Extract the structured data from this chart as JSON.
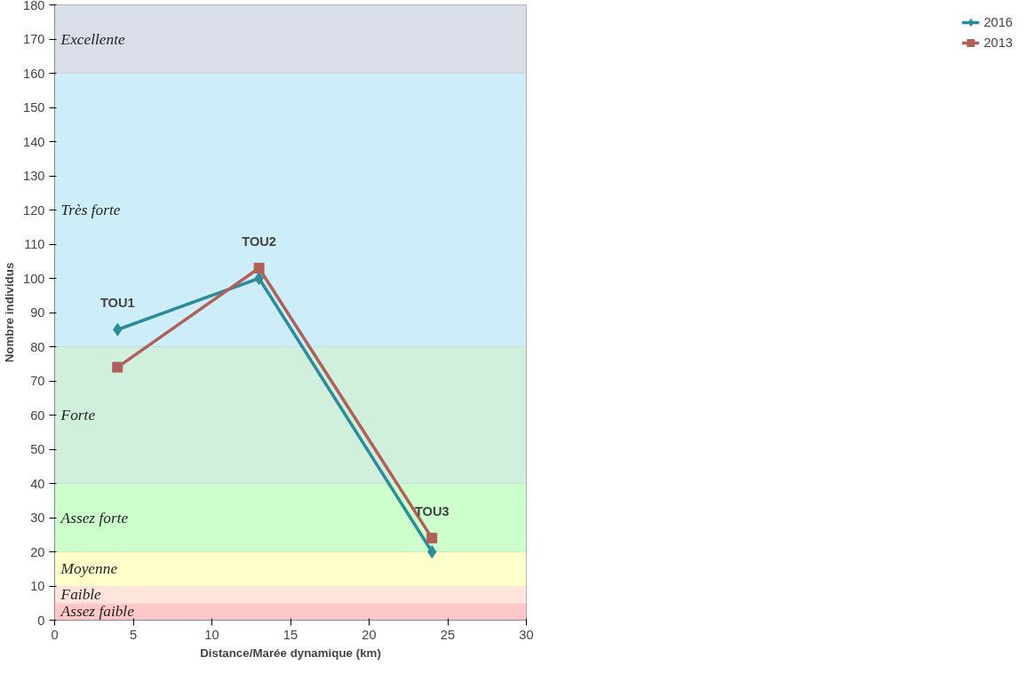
{
  "chart_data": {
    "type": "line",
    "xlabel": "Distance/Marée dynamique (km)",
    "ylabel": "Nombre individus",
    "x": [
      4,
      13,
      24
    ],
    "series": [
      {
        "name": "2016",
        "color": "#2e8b9a",
        "values": [
          85,
          100,
          20
        ],
        "marker": "diamond"
      },
      {
        "name": "2013",
        "color": "#b0605a",
        "values": [
          74,
          103,
          24
        ],
        "marker": "square"
      }
    ],
    "xlim": [
      0,
      30
    ],
    "xticks": [
      0,
      5,
      10,
      15,
      20,
      25,
      30
    ],
    "ylim": [
      0,
      180
    ],
    "yticks": [
      0,
      10,
      20,
      30,
      40,
      50,
      60,
      70,
      80,
      90,
      100,
      110,
      120,
      130,
      140,
      150,
      160,
      170,
      180
    ],
    "grid": "y",
    "legend": "right",
    "line_style": "solid",
    "bands": [
      {
        "axis": "y",
        "from": 0,
        "to": 5,
        "label": "Assez faible",
        "color": "#ffc8c8"
      },
      {
        "axis": "y",
        "from": 5,
        "to": 10,
        "label": "Faible",
        "color": "#fde5dc"
      },
      {
        "axis": "y",
        "from": 10,
        "to": 20,
        "label": "Moyenne",
        "color": "#ffffcc"
      },
      {
        "axis": "y",
        "from": 20,
        "to": 40,
        "label": "Assez forte",
        "color": "#ccffcc"
      },
      {
        "axis": "y",
        "from": 40,
        "to": 80,
        "label": "Forte",
        "color": "#d0efdc"
      },
      {
        "axis": "y",
        "from": 80,
        "to": 160,
        "label": "Très forte",
        "color": "#cdeef8"
      },
      {
        "axis": "y",
        "from": 160,
        "to": 180,
        "label": "Excellente",
        "color": "#d9dee8"
      }
    ],
    "annotations": [
      {
        "text": "TOU1",
        "x": 4,
        "y": 85
      },
      {
        "text": "TOU2",
        "x": 13,
        "y": 103
      },
      {
        "text": "TOU3",
        "x": 24,
        "y": 24
      }
    ]
  }
}
